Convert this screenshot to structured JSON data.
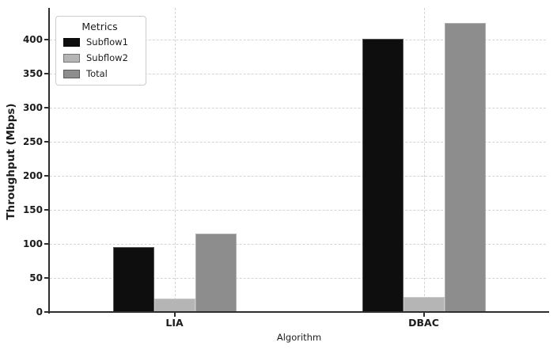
{
  "figure": {
    "background": "#ffffff",
    "axis_color": "#2e2e2e",
    "grid_color": "#d4d4d4",
    "text_color": "#1c1c1c"
  },
  "chart_data": {
    "type": "bar",
    "title": "",
    "xlabel": "Algorithm",
    "ylabel": "Throughput (Mbps)",
    "categories": [
      "LIA",
      "DBAC"
    ],
    "series": [
      {
        "name": "Subflow1",
        "color": "#0e0e0e",
        "values": [
          95,
          401
        ]
      },
      {
        "name": "Subflow2",
        "color": "#b5b5b5",
        "values": [
          20,
          22
        ]
      },
      {
        "name": "Total",
        "color": "#8d8d8d",
        "values": [
          115,
          424
        ]
      }
    ],
    "ylim": [
      0,
      440
    ],
    "yticks": [
      0,
      50,
      100,
      150,
      200,
      250,
      300,
      350,
      400
    ],
    "grid": "dashed, horizontal and vertical",
    "legend": {
      "title": "Metrics",
      "position": "upper left",
      "entries": [
        "Subflow1",
        "Subflow2",
        "Total"
      ]
    }
  }
}
